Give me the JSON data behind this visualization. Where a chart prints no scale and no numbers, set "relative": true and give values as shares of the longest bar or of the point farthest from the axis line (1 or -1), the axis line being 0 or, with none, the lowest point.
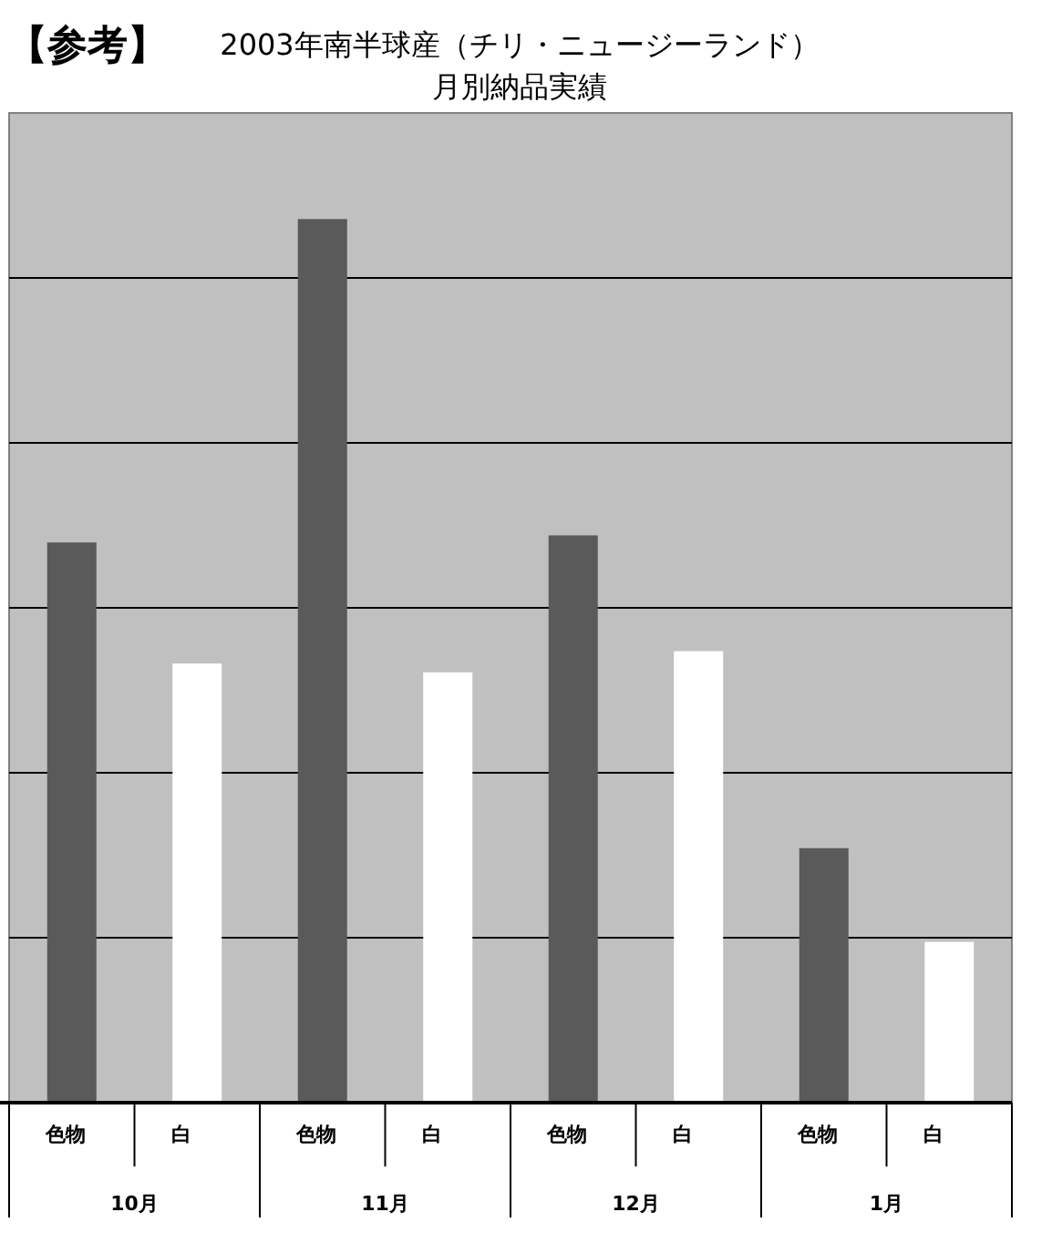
{
  "chart_data": {
    "type": "bar",
    "title": "2003年南半球産（チリ・ニュージーランド）",
    "subtitle": "月別納品実績",
    "annotations": [
      "【参考】",
      "10月",
      "11月",
      "12月",
      "1月"
    ],
    "categories": [
      "色物",
      "白",
      "色物",
      "白",
      "色物",
      "白",
      "色物",
      "白"
    ],
    "values": [
      0.634,
      0.497,
      1,
      0.487,
      0.642,
      0.511,
      0.288,
      0.182
    ],
    "colors": [
      "#5a5a5a",
      "#ffffff",
      "#5a5a5a",
      "#ffffff",
      "#5a5a5a",
      "#ffffff",
      "#5a5a5a",
      "#ffffff"
    ],
    "relative": true,
    "grid": true
  }
}
